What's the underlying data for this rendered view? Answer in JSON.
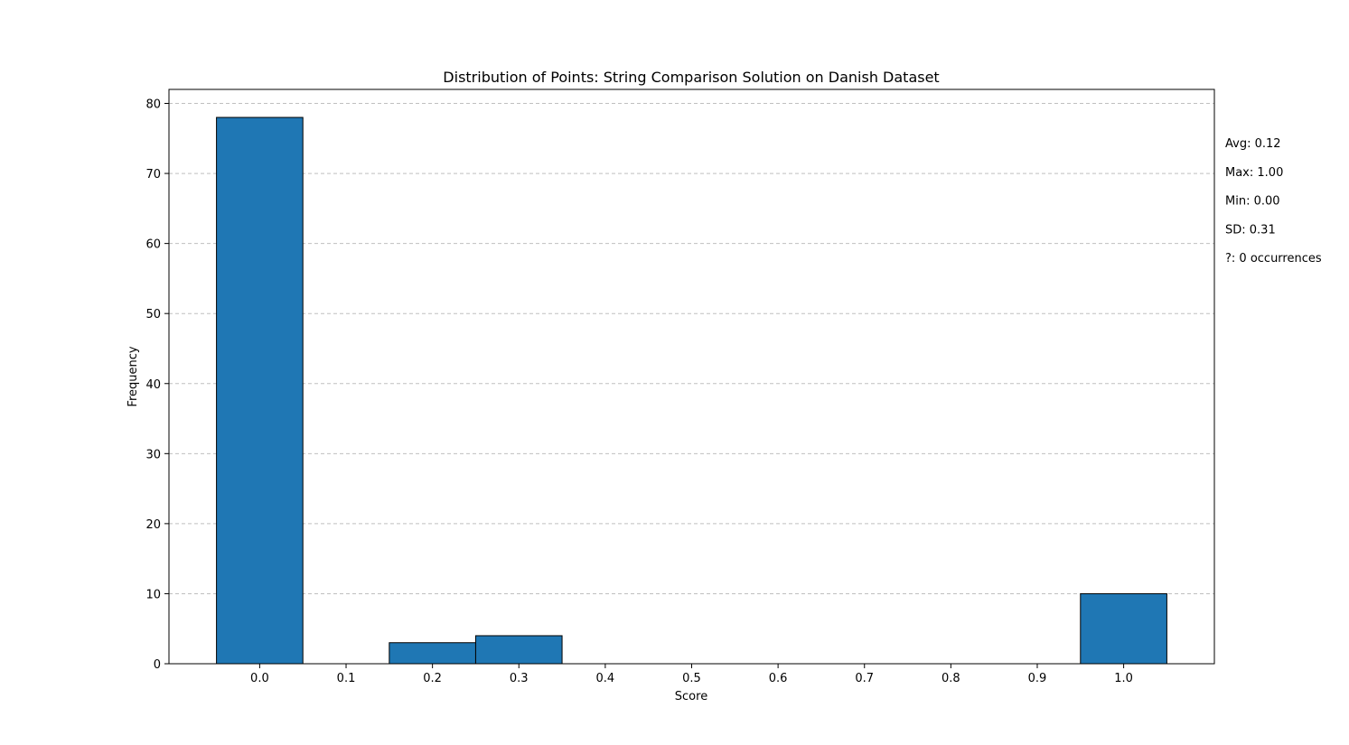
{
  "chart_data": {
    "type": "bar",
    "title": "Distribution of Points: String Comparison Solution on Danish Dataset",
    "xlabel": "Score",
    "ylabel": "Frequency",
    "xlim": [
      -0.105,
      1.105
    ],
    "ylim": [
      0,
      82
    ],
    "x_ticks": [
      "0.0",
      "0.1",
      "0.2",
      "0.3",
      "0.4",
      "0.5",
      "0.6",
      "0.7",
      "0.8",
      "0.9",
      "1.0"
    ],
    "x_tick_values": [
      0.0,
      0.1,
      0.2,
      0.3,
      0.4,
      0.5,
      0.6,
      0.7,
      0.8,
      0.9,
      1.0
    ],
    "y_ticks": [
      "0",
      "10",
      "20",
      "30",
      "40",
      "50",
      "60",
      "70",
      "80"
    ],
    "y_tick_values": [
      0,
      10,
      20,
      30,
      40,
      50,
      60,
      70,
      80
    ],
    "bar_width": 0.1,
    "bars": [
      {
        "x": 0.0,
        "value": 78
      },
      {
        "x": 0.2,
        "value": 3
      },
      {
        "x": 0.3,
        "value": 4
      },
      {
        "x": 1.0,
        "value": 10
      }
    ],
    "bar_color": "#1f77b4",
    "edge_color": "#000000",
    "grid": "y-dashed",
    "stats": [
      "Avg: 0.12",
      "Max: 1.00",
      "Min: 0.00",
      "SD: 0.31",
      "?: 0 occurrences"
    ]
  }
}
